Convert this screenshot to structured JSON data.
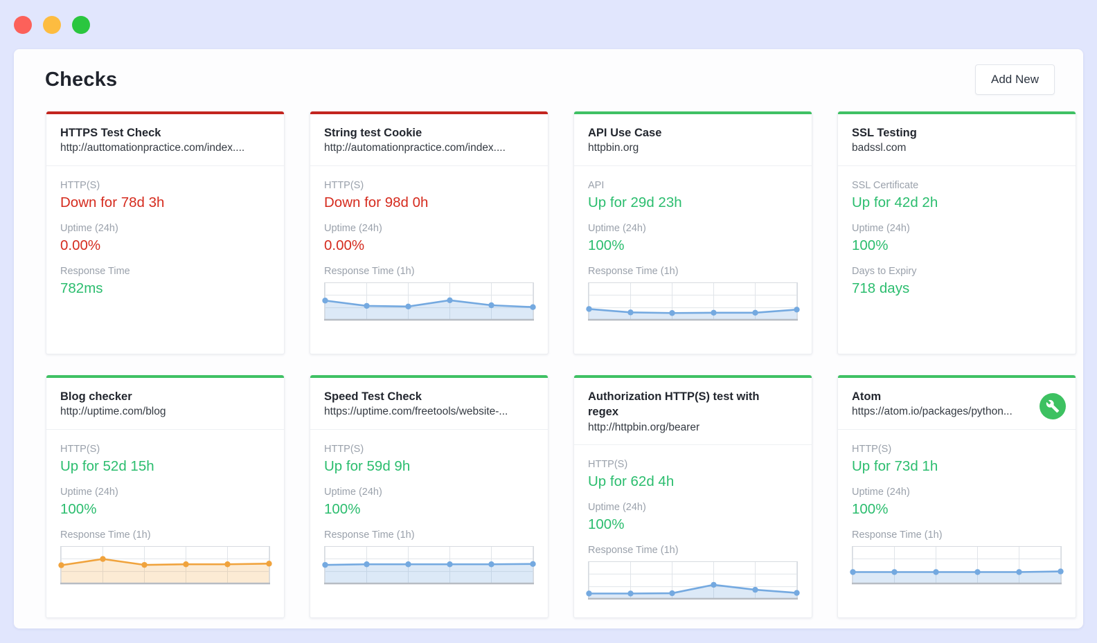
{
  "window": {
    "traffic_lights": [
      {
        "name": "close",
        "color": "#fc615a"
      },
      {
        "name": "minimize",
        "color": "#fdbc40"
      },
      {
        "name": "zoom",
        "color": "#2ac63f"
      }
    ]
  },
  "header": {
    "title": "Checks",
    "add_new_label": "Add New"
  },
  "colors": {
    "status_red_accent": "#c3251f",
    "status_green_accent": "#3fc164",
    "text_red": "#d52b1e",
    "text_green": "#2bbd6e",
    "maintenance_badge": "#3dc161"
  },
  "cards": [
    {
      "name": "HTTPS Test Check",
      "url": "http://auttomationpractice.com/index....",
      "accent": "#c3251f",
      "maintenance": false,
      "metrics": [
        {
          "label": "HTTP(S)",
          "value": "Down for 78d 3h",
          "color": "#d52b1e"
        },
        {
          "label": "Uptime (24h)",
          "value": "0.00%",
          "color": "#d52b1e"
        },
        {
          "label": "Response Time",
          "value": "782ms",
          "color": "#2bbd6e"
        }
      ],
      "sparkline": null
    },
    {
      "name": "String test Cookie",
      "url": "http://automationpractice.com/index....",
      "accent": "#c3251f",
      "maintenance": false,
      "metrics": [
        {
          "label": "HTTP(S)",
          "value": "Down for 98d 0h",
          "color": "#d52b1e"
        },
        {
          "label": "Uptime (24h)",
          "value": "0.00%",
          "color": "#d52b1e"
        }
      ],
      "sparkline": {
        "label": "Response Time (1h)",
        "type": "area",
        "line_color": "#74a9e0",
        "fill_color": "rgba(116,169,224,0.25)",
        "values": [
          0.55,
          0.38,
          0.36,
          0.56,
          0.4,
          0.34
        ]
      }
    },
    {
      "name": "API Use Case",
      "url": "httpbin.org",
      "accent": "#3fc164",
      "maintenance": false,
      "metrics": [
        {
          "label": "API",
          "value": "Up for 29d 23h",
          "color": "#2bbd6e"
        },
        {
          "label": "Uptime (24h)",
          "value": "100%",
          "color": "#2bbd6e"
        }
      ],
      "sparkline": {
        "label": "Response Time (1h)",
        "type": "area",
        "line_color": "#74a9e0",
        "fill_color": "rgba(116,169,224,0.25)",
        "values": [
          0.28,
          0.17,
          0.15,
          0.16,
          0.16,
          0.26
        ]
      }
    },
    {
      "name": "SSL Testing",
      "url": "badssl.com",
      "accent": "#3fc164",
      "maintenance": false,
      "metrics": [
        {
          "label": "SSL Certificate",
          "value": "Up for 42d 2h",
          "color": "#2bbd6e"
        },
        {
          "label": "Uptime (24h)",
          "value": "100%",
          "color": "#2bbd6e"
        },
        {
          "label": "Days to Expiry",
          "value": "718 days",
          "color": "#2bbd6e"
        }
      ],
      "sparkline": null
    },
    {
      "name": "Blog checker",
      "url": "http://uptime.com/blog",
      "accent": "#3fc164",
      "maintenance": false,
      "metrics": [
        {
          "label": "HTTP(S)",
          "value": "Up for 52d 15h",
          "color": "#2bbd6e"
        },
        {
          "label": "Uptime (24h)",
          "value": "100%",
          "color": "#2bbd6e"
        }
      ],
      "sparkline": {
        "label": "Response Time (1h)",
        "type": "area",
        "line_color": "#f0a33d",
        "fill_color": "rgba(240,163,61,0.22)",
        "values": [
          0.52,
          0.72,
          0.53,
          0.55,
          0.55,
          0.57
        ]
      }
    },
    {
      "name": "Speed Test Check",
      "url": "https://uptime.com/freetools/website-...",
      "accent": "#3fc164",
      "maintenance": false,
      "metrics": [
        {
          "label": "HTTP(S)",
          "value": "Up for 59d 9h",
          "color": "#2bbd6e"
        },
        {
          "label": "Uptime (24h)",
          "value": "100%",
          "color": "#2bbd6e"
        }
      ],
      "sparkline": {
        "label": "Response Time (1h)",
        "type": "area",
        "line_color": "#74a9e0",
        "fill_color": "rgba(116,169,224,0.25)",
        "values": [
          0.53,
          0.55,
          0.55,
          0.55,
          0.55,
          0.56
        ]
      }
    },
    {
      "name": "Authorization HTTP(S) test with regex",
      "url": "http://httpbin.org/bearer",
      "accent": "#3fc164",
      "maintenance": false,
      "metrics": [
        {
          "label": "HTTP(S)",
          "value": "Up for 62d 4h",
          "color": "#2bbd6e"
        },
        {
          "label": "Uptime (24h)",
          "value": "100%",
          "color": "#2bbd6e"
        }
      ],
      "sparkline": {
        "label": "Response Time (1h)",
        "type": "area",
        "line_color": "#74a9e0",
        "fill_color": "rgba(116,169,224,0.25)",
        "values": [
          0.1,
          0.1,
          0.11,
          0.38,
          0.22,
          0.12
        ]
      }
    },
    {
      "name": "Atom",
      "url": "https://atom.io/packages/python...",
      "accent": "#3fc164",
      "maintenance": true,
      "metrics": [
        {
          "label": "HTTP(S)",
          "value": "Up for 73d 1h",
          "color": "#2bbd6e"
        },
        {
          "label": "Uptime (24h)",
          "value": "100%",
          "color": "#2bbd6e"
        }
      ],
      "sparkline": {
        "label": "Response Time (1h)",
        "type": "area",
        "line_color": "#74a9e0",
        "fill_color": "rgba(116,169,224,0.25)",
        "values": [
          0.3,
          0.3,
          0.3,
          0.3,
          0.3,
          0.32
        ]
      }
    }
  ]
}
